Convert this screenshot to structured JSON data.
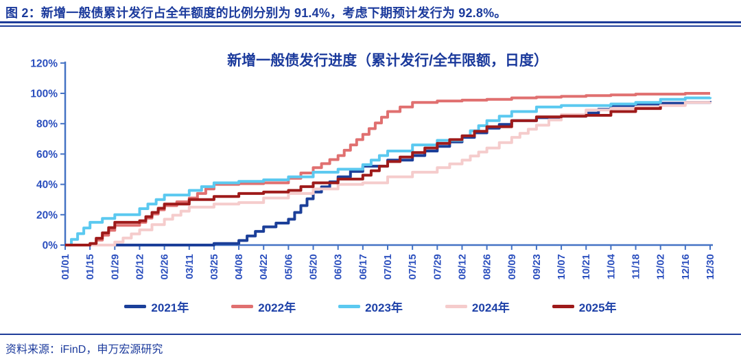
{
  "figure": {
    "caption": "图 2：新增一般债累计发行占全年额度的比例分别为 91.4%，考虑下期预计发行为 92.8%。",
    "source": "资料来源：iFinD，申万宏源研究"
  },
  "colors": {
    "heading_text": "#1B3A9C",
    "tick_label_text": "#2B4FBE",
    "axis_line": "#4472C4",
    "rule_line": "#1F3D99"
  },
  "chart_data": {
    "type": "line",
    "subtype": "cumulative-step",
    "title": "新增一般债发行进度（累计发行/全年限额，日度）",
    "xlabel": "",
    "ylabel": "",
    "ylim": [
      0,
      120
    ],
    "y_ticks": [
      "0%",
      "20%",
      "40%",
      "60%",
      "80%",
      "100%",
      "120%"
    ],
    "grid": false,
    "legend_position": "bottom",
    "x_tick_rotation": -90,
    "x_ticks": [
      "01/01",
      "01/15",
      "01/29",
      "02/12",
      "02/26",
      "03/11",
      "03/25",
      "04/08",
      "04/22",
      "05/06",
      "05/20",
      "06/03",
      "06/17",
      "07/01",
      "07/15",
      "07/29",
      "08/12",
      "08/26",
      "09/09",
      "09/23",
      "10/07",
      "10/21",
      "11/04",
      "11/18",
      "12/02",
      "12/16",
      "12/30"
    ],
    "unit": "percent",
    "series": [
      {
        "name": "2021年",
        "color": "#1B3F99",
        "values": [
          0,
          0,
          0,
          0,
          0,
          0,
          1,
          3,
          12,
          17,
          35,
          45,
          52,
          56,
          59,
          65,
          71,
          77,
          82,
          84,
          85,
          87,
          92,
          93,
          93.5,
          94,
          95
        ]
      },
      {
        "name": "2022年",
        "color": "#E07070",
        "values": [
          0,
          0,
          13,
          15,
          26,
          31,
          40,
          40.5,
          41,
          44,
          51,
          59,
          73,
          88,
          94,
          95,
          95.5,
          96,
          97,
          97.5,
          98,
          98.5,
          99,
          99.5,
          99.5,
          100,
          100
        ]
      },
      {
        "name": "2023年",
        "color": "#5BC9F0",
        "values": [
          0,
          15,
          20,
          24,
          33,
          36,
          41,
          42,
          43,
          45,
          48,
          50,
          53,
          62,
          66,
          69,
          72,
          82,
          88,
          91,
          92,
          92,
          93,
          94,
          96,
          97,
          97.5
        ]
      },
      {
        "name": "2024年",
        "color": "#F5CCCC",
        "values": [
          0,
          0,
          2,
          10,
          17,
          25,
          27,
          28,
          31,
          34,
          37,
          40,
          41,
          45,
          48,
          51,
          56,
          64,
          71,
          79,
          86,
          89,
          90,
          91,
          92,
          94,
          94.5
        ]
      },
      {
        "name": "2025年",
        "color": "#9E1A1A",
        "values": [
          0,
          1,
          15,
          16,
          27,
          30,
          32,
          34,
          35,
          36,
          41,
          43.5,
          46,
          55,
          61,
          67,
          72,
          78,
          82,
          84.5,
          85,
          85.5,
          88,
          90,
          91.4,
          null,
          null
        ]
      }
    ]
  }
}
